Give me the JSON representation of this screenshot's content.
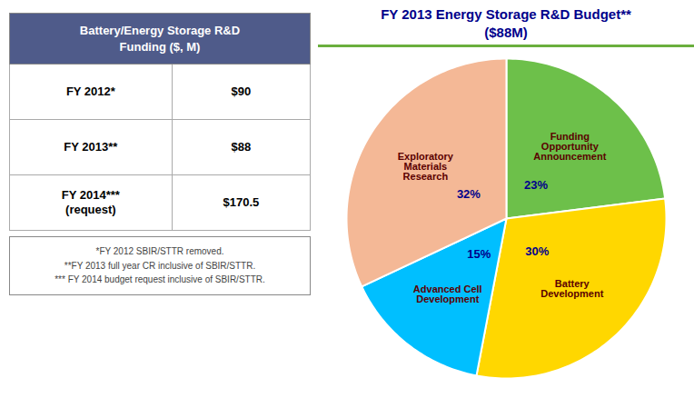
{
  "chart_data": [
    {
      "type": "table",
      "title": "Battery/Energy Storage R&D\nFunding ($, M)",
      "color": "#4F5B8A",
      "categories": [
        "FY 2012*",
        "FY 2013**",
        "FY 2014***\n(request)"
      ],
      "values": [
        90,
        88,
        170.5
      ],
      "value_labels": [
        "$90",
        "$88",
        "$170.5"
      ],
      "annotations": [
        "*FY 2012 SBIR/STTR removed.",
        "**FY 2013 full year CR inclusive of SBIR/STTR.",
        "*** FY 2014 budget request inclusive of SBIR/STTR."
      ]
    },
    {
      "type": "pie",
      "title": "FY 2013 Energy Storage R&D Budget**\n($88M)",
      "categories": [
        "Funding\nOpportunity\nAnnouncement",
        "Battery\nDevelopment",
        "Advanced Cell\nDevelopment",
        "Exploratory\nMaterials\nResearch"
      ],
      "values": [
        23,
        30,
        15,
        32
      ],
      "value_labels": [
        "23%",
        "30%",
        "15%",
        "32%"
      ],
      "colors": [
        "#6DC04A",
        "#FFD700",
        "#00BFFF",
        "#F4B896"
      ],
      "data_labels": true
    }
  ]
}
